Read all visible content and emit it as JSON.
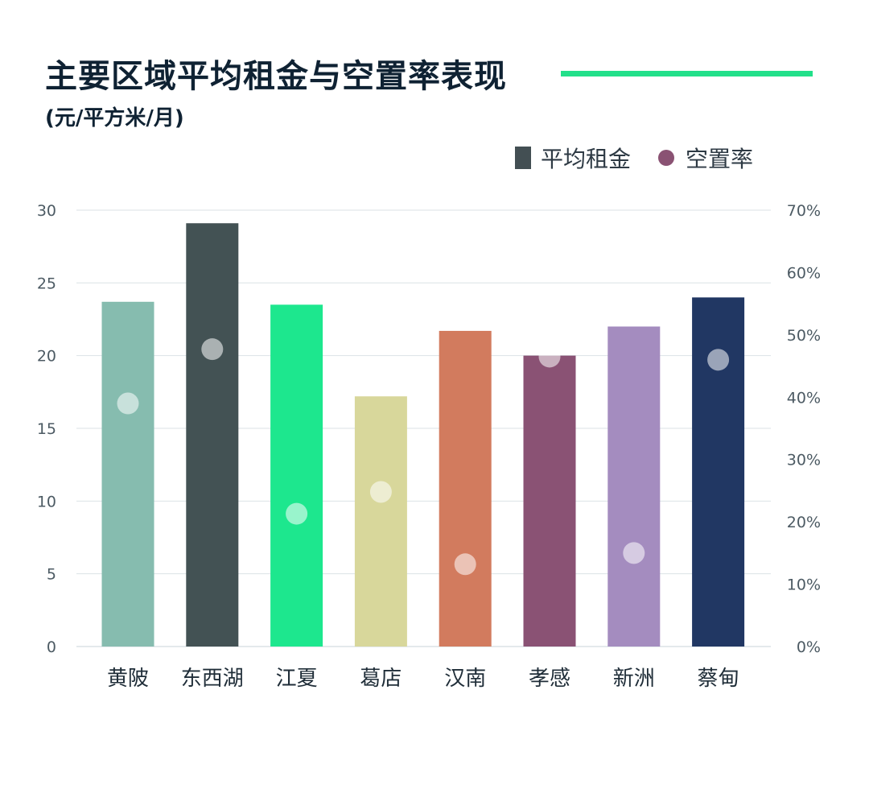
{
  "header": {
    "title": "主要区域平均租金与空置率表现",
    "subtitle": "(元/平方米/月)"
  },
  "legend": {
    "rent_label": "平均租金",
    "vacancy_label": "空置率"
  },
  "colors": {
    "title_accent": "#22e08a",
    "rent_legend": "#434f53",
    "vacancy_legend": "#8a5273"
  },
  "chart_data": {
    "type": "bar",
    "categories": [
      "黄陂",
      "东西湖",
      "江夏",
      "葛店",
      "汉南",
      "孝感",
      "新洲",
      "蔡甸"
    ],
    "series": [
      {
        "name": "平均租金",
        "axis": "left",
        "values": [
          23.7,
          29.1,
          23.5,
          17.2,
          21.7,
          20.0,
          22.0,
          24.0
        ],
        "colors": [
          "#86bcaf",
          "#435254",
          "#1de78e",
          "#d8d79b",
          "#d27b5e",
          "#8a5274",
          "#a48cbf",
          "#213763"
        ]
      },
      {
        "name": "空置率",
        "axis": "right",
        "type": "scatter",
        "values": [
          0.39,
          0.477,
          0.213,
          0.248,
          0.132,
          0.465,
          0.15,
          0.46
        ]
      }
    ],
    "ylim_left": [
      0,
      30
    ],
    "ylim_right": [
      0,
      0.7
    ],
    "yticks_left": [
      "0",
      "5",
      "10",
      "15",
      "20",
      "25",
      "30"
    ],
    "yticks_right": [
      "0%",
      "10%",
      "20%",
      "30%",
      "40%",
      "50%",
      "60%",
      "70%"
    ],
    "grid": true,
    "legend_position": "top-right"
  }
}
